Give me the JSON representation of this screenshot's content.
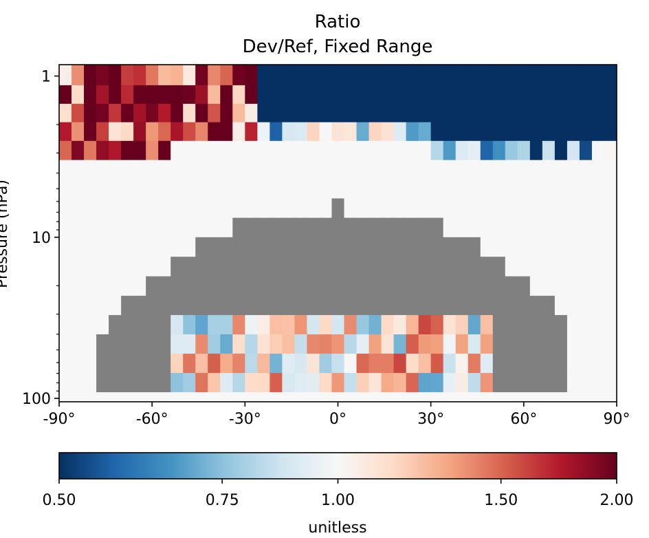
{
  "chart_data": {
    "type": "heatmap",
    "title": "Ratio",
    "subtitle": "Dev/Ref, Fixed Range",
    "xlabel": "",
    "ylabel": "Pressure (hPa)",
    "x_range": [
      -90,
      90
    ],
    "y_range": [
      100,
      0.8
    ],
    "y_scale": "log",
    "x_ticks": [
      "-90°",
      "-60°",
      "-30°",
      "0°",
      "30°",
      "60°",
      "90°"
    ],
    "y_ticks": [
      "1",
      "10",
      "100"
    ],
    "masked_color": "#808080",
    "colorbar": {
      "label": "unitless",
      "ticks": [
        "0.50",
        "0.75",
        "1.00",
        "1.50",
        "2.00"
      ],
      "range": [
        0.5,
        2.0
      ],
      "scale": "log",
      "cmap_stops": [
        "#053061",
        "#2166ac",
        "#4393c3",
        "#92c5de",
        "#d1e5f0",
        "#f7f7f7",
        "#fddbc7",
        "#f4a582",
        "#d6604d",
        "#b2182b",
        "#67001f"
      ]
    },
    "nx": 45,
    "levels_hpa": [
      1.0,
      1.3,
      1.7,
      2.2,
      2.9,
      3.8,
      5.0,
      6.6,
      8.7,
      11.5,
      15.2,
      20.1,
      26.5,
      34.9,
      46.0,
      60.6,
      79.9,
      105.0
    ],
    "regions": [
      {
        "lat_from": -90,
        "lat_to": -26,
        "p_from": 0.8,
        "p_to": 2.9,
        "ratio": 1.6,
        "pattern": "mixed"
      },
      {
        "lat_from": -26,
        "lat_to": 90,
        "p_from": 0.8,
        "p_to": 2.9,
        "ratio": 0.5
      },
      {
        "lat_from": -26,
        "lat_to": 30,
        "p_from": 2.2,
        "p_to": 2.9,
        "ratio": 0.8,
        "pattern": "mixed"
      },
      {
        "lat_from": 30,
        "lat_to": 90,
        "p_from": 2.9,
        "p_to": 3.8,
        "ratio": 0.7,
        "pattern": "mixed"
      },
      {
        "lat_from": -90,
        "lat_to": -54,
        "p_from": 2.9,
        "p_to": 8.7,
        "ratio": 2.0,
        "pattern": "mixed"
      },
      {
        "lat_from": -90,
        "lat_to": 90,
        "p_from": 3.8,
        "p_to": 105,
        "ratio": 1.0
      },
      {
        "lat_from": -76,
        "lat_to": 76,
        "p_from": 6.6,
        "p_to": 105,
        "ratio": null,
        "pattern": "arch"
      },
      {
        "lat_from": -52,
        "lat_to": 52,
        "p_from": 34,
        "p_to": 105,
        "ratio": 1.05,
        "pattern": "mixed"
      },
      {
        "lat_from": -90,
        "lat_to": -50,
        "p_from": 80,
        "p_to": 105,
        "ratio": 2.0
      }
    ]
  }
}
